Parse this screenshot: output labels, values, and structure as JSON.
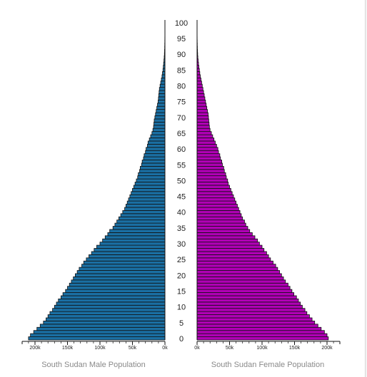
{
  "chart_data": {
    "type": "bar",
    "orientation": "horizontal-population-pyramid",
    "age_ticks": [
      "0",
      "5",
      "10",
      "15",
      "20",
      "25",
      "30",
      "35",
      "40",
      "45",
      "50",
      "55",
      "60",
      "65",
      "70",
      "75",
      "80",
      "85",
      "90",
      "95",
      "100"
    ],
    "x_ticks_male": [
      "200k",
      "150k",
      "100k",
      "50k",
      "0k"
    ],
    "x_ticks_female": [
      "0k",
      "50k",
      "100k",
      "150k",
      "200k"
    ],
    "xlim": [
      0,
      215000
    ],
    "ages": [
      0,
      1,
      2,
      3,
      4,
      5,
      6,
      7,
      8,
      9,
      10,
      11,
      12,
      13,
      14,
      15,
      16,
      17,
      18,
      19,
      20,
      21,
      22,
      23,
      24,
      25,
      26,
      27,
      28,
      29,
      30,
      31,
      32,
      33,
      34,
      35,
      36,
      37,
      38,
      39,
      40,
      41,
      42,
      43,
      44,
      45,
      46,
      47,
      48,
      49,
      50,
      51,
      52,
      53,
      54,
      55,
      56,
      57,
      58,
      59,
      60,
      61,
      62,
      63,
      64,
      65,
      66,
      67,
      68,
      69,
      70,
      71,
      72,
      73,
      74,
      75,
      76,
      77,
      78,
      79,
      80,
      81,
      82,
      83,
      84,
      85,
      86,
      87,
      88,
      89,
      90,
      91,
      92,
      93,
      94,
      95,
      96,
      97,
      98,
      99,
      100
    ],
    "series": [
      {
        "name": "South Sudan Male Population",
        "color": "#1a6fa3",
        "values": [
          210000,
          207000,
          202000,
          197000,
          192000,
          187000,
          183000,
          180000,
          177000,
          173000,
          170000,
          167000,
          164000,
          160000,
          157000,
          153000,
          150000,
          147000,
          144000,
          141000,
          138000,
          135000,
          132000,
          128000,
          125000,
          121000,
          117000,
          113000,
          109000,
          105000,
          100000,
          96000,
          92000,
          88000,
          85000,
          80000,
          77000,
          74000,
          71000,
          68000,
          65000,
          62000,
          60000,
          58000,
          56000,
          54000,
          52000,
          50000,
          48000,
          46000,
          44000,
          42000,
          41000,
          39000,
          38000,
          36000,
          35000,
          33000,
          32000,
          30000,
          29000,
          27000,
          26000,
          24000,
          22000,
          20000,
          18500,
          17500,
          17000,
          16500,
          15500,
          14500,
          13500,
          12500,
          11500,
          10500,
          10000,
          9500,
          9000,
          8500,
          7500,
          6500,
          5500,
          4500,
          3800,
          3000,
          2500,
          2000,
          1500,
          1100,
          800,
          600,
          400,
          300,
          200,
          150,
          100,
          70,
          40,
          20,
          10
        ]
      },
      {
        "name": "South Sudan Female Population",
        "color": "#b000b5",
        "values": [
          202000,
          200000,
          196000,
          191000,
          186000,
          181000,
          177000,
          173000,
          169000,
          166000,
          162000,
          159000,
          156000,
          153000,
          149000,
          146000,
          143000,
          140000,
          136000,
          133000,
          130000,
          127000,
          124000,
          121000,
          117000,
          113000,
          110000,
          107000,
          103000,
          100000,
          96000,
          93000,
          89000,
          85000,
          81000,
          78000,
          75000,
          73000,
          70000,
          68000,
          66000,
          64000,
          62000,
          60000,
          58000,
          56000,
          54000,
          52000,
          50000,
          48000,
          47000,
          45000,
          44000,
          42000,
          41000,
          39000,
          38000,
          36000,
          35000,
          33000,
          32000,
          30000,
          28000,
          26000,
          24000,
          22000,
          20000,
          19000,
          18500,
          18000,
          17500,
          17000,
          16000,
          15000,
          14000,
          13000,
          12000,
          11000,
          10000,
          9000,
          8000,
          7000,
          6000,
          5000,
          4200,
          3500,
          2800,
          2200,
          1700,
          1200,
          900,
          700,
          500,
          350,
          250,
          150,
          100,
          70,
          40,
          20,
          10
        ]
      }
    ],
    "xlabel_male": "South Sudan Male Population",
    "xlabel_female": "South Sudan Female Population"
  }
}
